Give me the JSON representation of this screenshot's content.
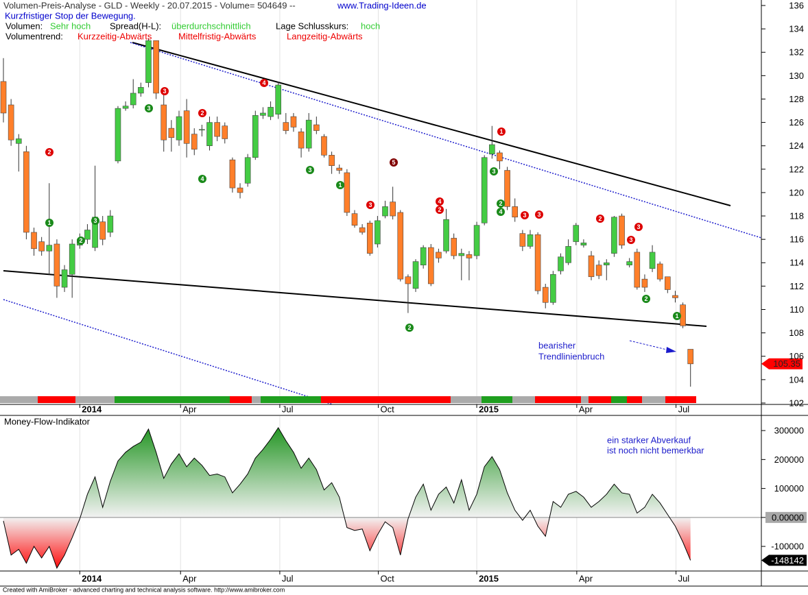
{
  "chart_data": [
    {
      "type": "candlestick",
      "title": "Volumen-Preis-Analyse - GLD - Weekly  - 20.07.2015 - Volume= 504649 --",
      "website": "www.Trading-Ideen.de",
      "subtitle": "Kurzfristiger Stop der Bewegung.",
      "status": [
        {
          "label": "Volumen:",
          "value": "Sehr hoch"
        },
        {
          "label": "Spread(H-L):",
          "value": "überdurchschnittlich"
        },
        {
          "label": "Lage Schlusskurs:",
          "value": "hoch"
        }
      ],
      "trend_label": "Volumentrend:",
      "trends": [
        "Kurzzeitig-Abwärts",
        "Mittelfristig-Abwärts",
        "Langzeitig-Abwärts"
      ],
      "annotation": [
        "bearisher",
        "Trendlinienbruch"
      ],
      "signals": [
        {
          "label": "2",
          "color": "#dd0000"
        },
        {
          "label": "1",
          "color": "#1a8a1a"
        },
        {
          "label": "2",
          "color": "#1a8a1a"
        },
        {
          "label": "3",
          "color": "#1a8a1a"
        },
        {
          "label": "3",
          "color": "#1a8a1a"
        },
        {
          "label": "3",
          "color": "#dd0000"
        },
        {
          "label": "2",
          "color": "#dd0000"
        },
        {
          "label": "4",
          "color": "#1a8a1a"
        },
        {
          "label": "4",
          "color": "#dd0000"
        },
        {
          "label": "3",
          "color": "#1a8a1a"
        },
        {
          "label": "1",
          "color": "#1a8a1a"
        },
        {
          "label": "3",
          "color": "#dd0000"
        },
        {
          "label": "5",
          "color": "#800000"
        },
        {
          "label": "2",
          "color": "#1a8a1a"
        },
        {
          "label": "4",
          "color": "#dd0000"
        },
        {
          "label": "2",
          "color": "#dd0000"
        },
        {
          "label": "3",
          "color": "#1a8a1a"
        },
        {
          "label": "1",
          "color": "#dd0000"
        },
        {
          "label": "2",
          "color": "#1a8a1a"
        },
        {
          "label": "4",
          "color": "#1a8a1a"
        },
        {
          "label": "3",
          "color": "#dd0000"
        },
        {
          "label": "3",
          "color": "#dd0000"
        },
        {
          "label": "2",
          "color": "#dd0000"
        },
        {
          "label": "3",
          "color": "#dd0000"
        },
        {
          "label": "3",
          "color": "#dd0000"
        },
        {
          "label": "2",
          "color": "#1a8a1a"
        },
        {
          "label": "1",
          "color": "#1a8a1a"
        }
      ],
      "up_color": "#44cc44",
      "down_color": "#ff7f2a",
      "xlim": [
        -0.45,
        99.28
      ],
      "xticks": [
        {
          "value": 10,
          "label": "2014"
        },
        {
          "value": 23.2,
          "label": "Apr"
        },
        {
          "value": 36.2,
          "label": "Jul"
        },
        {
          "value": 49.1,
          "label": "Oct"
        },
        {
          "value": 62,
          "label": "2015"
        },
        {
          "value": 75.1,
          "label": "Apr"
        },
        {
          "value": 88.1,
          "label": "Jul"
        }
      ],
      "ylim": [
        101.88,
        136.47
      ],
      "yticks": [
        102,
        104,
        106,
        108,
        110,
        112,
        114,
        116,
        118,
        120,
        122,
        124,
        126,
        128,
        130,
        132,
        134,
        136
      ],
      "open": [
        129.5,
        127.5,
        124.2,
        123.5,
        116.6,
        115.8,
        115.0,
        115.6,
        111.9,
        113.0,
        115.5,
        116.0,
        115.3,
        117.5,
        116.6,
        122.7,
        127.2,
        127.5,
        128.5,
        129.4,
        133.0,
        127.5,
        125.5,
        124.5,
        127.0,
        125.0,
        125.4,
        124.0,
        126.0,
        125.7,
        122.8,
        120.4,
        120.8,
        123.0,
        126.6,
        126.5,
        126.7,
        126.0,
        126.5,
        125.2,
        123.8,
        125.8,
        124.8,
        123.2,
        122.1,
        121.7,
        118.2,
        117.0,
        117.4,
        115.6,
        118.0,
        119.2,
        118.3,
        112.8,
        111.8,
        113.8,
        115.3,
        114.9,
        115.0,
        116.1,
        114.6,
        114.7,
        114.6,
        117.4,
        123.3,
        123.4,
        121.9,
        118.8,
        116.5,
        115.4,
        116.4,
        111.9,
        110.6,
        113.3,
        114.0,
        115.8,
        115.5,
        114.6,
        113.8,
        113.8,
        114.8,
        118.0,
        113.8,
        114.9,
        112.6,
        113.5,
        113.9,
        112.8,
        111.2,
        110.4,
        106.6
      ],
      "high": [
        131.5,
        128.0,
        125.0,
        124.0,
        117.0,
        116.2,
        120.8,
        116.0,
        113.8,
        116.0,
        116.5,
        117.3,
        122.3,
        118.0,
        118.5,
        127.4,
        127.8,
        129.7,
        129.4,
        133.2,
        133.0,
        128.5,
        126.2,
        127.0,
        128.0,
        125.5,
        125.8,
        126.5,
        126.5,
        126.0,
        123.0,
        120.8,
        123.3,
        127.0,
        127.3,
        127.8,
        129.5,
        126.8,
        126.8,
        125.5,
        126.8,
        126.5,
        125.0,
        123.5,
        122.4,
        122.0,
        118.5,
        117.3,
        117.6,
        118.0,
        119.3,
        120.5,
        118.5,
        113.0,
        114.3,
        115.5,
        115.6,
        115.2,
        118.6,
        116.5,
        115.2,
        115.0,
        117.5,
        123.2,
        125.7,
        123.6,
        122.2,
        119.5,
        116.8,
        116.8,
        116.6,
        112.2,
        113.3,
        114.8,
        116.0,
        117.4,
        116.0,
        115.0,
        114.2,
        114.3,
        118.0,
        118.2,
        114.4,
        115.2,
        113.0,
        115.5,
        114.1,
        112.8,
        111.6,
        110.6,
        106.6
      ],
      "low": [
        126.0,
        124.0,
        121.8,
        116.0,
        114.6,
        114.6,
        113.0,
        111.0,
        111.5,
        111.0,
        115.2,
        115.6,
        115.0,
        115.5,
        116.2,
        122.5,
        127.0,
        127.2,
        128.2,
        129.0,
        128.0,
        123.5,
        123.5,
        124.0,
        123.0,
        123.2,
        124.8,
        123.6,
        124.4,
        124.2,
        120.0,
        119.5,
        120.5,
        122.8,
        126.3,
        126.2,
        126.3,
        125.0,
        125.2,
        123.0,
        123.5,
        125.0,
        123.0,
        121.6,
        121.6,
        118.0,
        117.0,
        116.4,
        114.6,
        115.3,
        117.8,
        117.7,
        112.4,
        109.7,
        111.5,
        113.5,
        112.0,
        114.0,
        114.8,
        114.3,
        112.5,
        112.5,
        114.3,
        117.2,
        122.9,
        122.0,
        118.5,
        117.5,
        115.0,
        115.2,
        111.3,
        110.1,
        110.4,
        113.0,
        113.8,
        115.5,
        115.3,
        112.5,
        112.6,
        112.5,
        114.5,
        115.2,
        113.6,
        111.7,
        111.5,
        113.2,
        112.4,
        111.4,
        110.6,
        108.4,
        103.4
      ],
      "close": [
        126.8,
        124.5,
        124.6,
        116.6,
        115.2,
        115.0,
        115.5,
        112.0,
        113.4,
        115.6,
        116.0,
        116.8,
        117.9,
        116.0,
        118.0,
        127.2,
        127.4,
        128.5,
        129.0,
        133.0,
        128.5,
        124.5,
        124.7,
        126.5,
        124.2,
        123.7,
        125.4,
        126.0,
        124.8,
        124.6,
        120.4,
        120.0,
        123.0,
        126.6,
        126.8,
        127.3,
        129.2,
        125.3,
        125.6,
        123.8,
        126.2,
        125.3,
        123.2,
        122.3,
        121.9,
        118.3,
        117.2,
        116.6,
        114.8,
        117.6,
        118.8,
        118.0,
        112.6,
        112.2,
        114.1,
        115.3,
        112.2,
        114.4,
        117.7,
        114.6,
        114.8,
        114.4,
        117.2,
        123.0,
        124.1,
        122.7,
        118.8,
        117.9,
        115.4,
        116.4,
        111.6,
        110.6,
        113.0,
        114.5,
        115.4,
        117.2,
        115.7,
        112.8,
        112.9,
        114.0,
        117.9,
        115.5,
        114.1,
        111.9,
        111.9,
        114.9,
        112.6,
        111.7,
        111.0,
        108.6,
        105.35
      ]
    },
    {
      "type": "area",
      "title": "Money-Flow-Indikator",
      "annotation": [
        "ein starker Abverkauf",
        "ist noch nicht bemerkbar"
      ],
      "xlim": [
        -0.45,
        99.28
      ],
      "xticks": [
        {
          "value": 10,
          "label": "2014"
        },
        {
          "value": 23.2,
          "label": "Apr"
        },
        {
          "value": 36.2,
          "label": "Jul"
        },
        {
          "value": 49.1,
          "label": "Oct"
        },
        {
          "value": 62,
          "label": "2015"
        },
        {
          "value": 75.1,
          "label": "Apr"
        },
        {
          "value": 88.1,
          "label": "Jul"
        }
      ],
      "ylim": [
        -185000,
        350000
      ],
      "yticks": [
        -100000,
        {
          "value": 0,
          "label": "0.00000"
        },
        100000,
        200000,
        300000
      ],
      "series": [
        {
          "name": "Money-Flow-Indikator",
          "color": "#000000",
          "values": [
            -12000,
            -130000,
            -110000,
            -158000,
            -100000,
            -140000,
            -100000,
            -175000,
            -130000,
            -70000,
            -5000,
            80000,
            140000,
            35000,
            125000,
            195000,
            225000,
            245000,
            260000,
            305000,
            225000,
            135000,
            185000,
            220000,
            175000,
            205000,
            180000,
            145000,
            150000,
            140000,
            85000,
            115000,
            150000,
            205000,
            235000,
            270000,
            310000,
            265000,
            225000,
            170000,
            205000,
            165000,
            95000,
            120000,
            70000,
            -35000,
            -45000,
            -40000,
            -115000,
            -60000,
            -15000,
            -35000,
            -130000,
            -5000,
            70000,
            115000,
            25000,
            80000,
            105000,
            50000,
            130000,
            25000,
            80000,
            175000,
            210000,
            165000,
            85000,
            25000,
            -10000,
            25000,
            -30000,
            -65000,
            55000,
            35000,
            80000,
            90000,
            70000,
            35000,
            55000,
            80000,
            115000,
            85000,
            80000,
            15000,
            35000,
            80000,
            50000,
            10000,
            -30000,
            -85000,
            -148142
          ]
        }
      ]
    }
  ],
  "footer": "Created with AmiBroker - advanced charting and technical analysis software. http://www.amibroker.com"
}
